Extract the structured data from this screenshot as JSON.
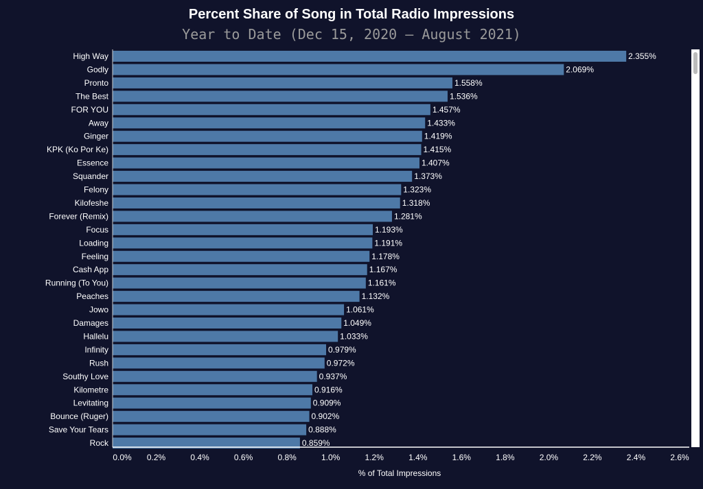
{
  "chart_data": {
    "type": "bar",
    "orientation": "horizontal",
    "title": "Percent Share of Song in Total Radio Impressions",
    "subtitle": "Year to Date (Dec 15, 2020 — August 2021)",
    "xlabel": "% of Total Impressions",
    "ylabel": "",
    "xlim": [
      0,
      2.6
    ],
    "xticks": [
      "0.0%",
      "0.2%",
      "0.4%",
      "0.6%",
      "0.8%",
      "1.0%",
      "1.2%",
      "1.4%",
      "1.6%",
      "1.8%",
      "2.0%",
      "2.2%",
      "2.4%",
      "2.6%"
    ],
    "grid": false,
    "bar_color": "#4e79a7",
    "categories": [
      "High Way",
      "Godly",
      "Pronto",
      "The Best",
      "FOR YOU",
      "Away",
      "Ginger",
      "KPK (Ko Por Ke)",
      "Essence",
      "Squander",
      "Felony",
      "Kilofeshe",
      "Forever (Remix)",
      "Focus",
      "Loading",
      "Feeling",
      "Cash App",
      "Running (To You)",
      "Peaches",
      "Jowo",
      "Damages",
      "Hallelu",
      "Infinity",
      "Rush",
      "Southy Love",
      "Kilometre",
      "Levitating",
      "Bounce (Ruger)",
      "Save Your Tears",
      "Rock"
    ],
    "values": [
      2.355,
      2.069,
      1.558,
      1.536,
      1.457,
      1.433,
      1.419,
      1.415,
      1.407,
      1.373,
      1.323,
      1.318,
      1.281,
      1.193,
      1.191,
      1.178,
      1.167,
      1.161,
      1.132,
      1.061,
      1.049,
      1.033,
      0.979,
      0.972,
      0.937,
      0.916,
      0.909,
      0.902,
      0.888,
      0.859
    ],
    "labels": [
      "2.355%",
      "2.069%",
      "1.558%",
      "1.536%",
      "1.457%",
      "1.433%",
      "1.419%",
      "1.415%",
      "1.407%",
      "1.373%",
      "1.323%",
      "1.318%",
      "1.281%",
      "1.193%",
      "1.191%",
      "1.178%",
      "1.167%",
      "1.161%",
      "1.132%",
      "1.061%",
      "1.049%",
      "1.033%",
      "0.979%",
      "0.972%",
      "0.937%",
      "0.916%",
      "0.909%",
      "0.902%",
      "0.888%",
      "0.859%"
    ]
  }
}
